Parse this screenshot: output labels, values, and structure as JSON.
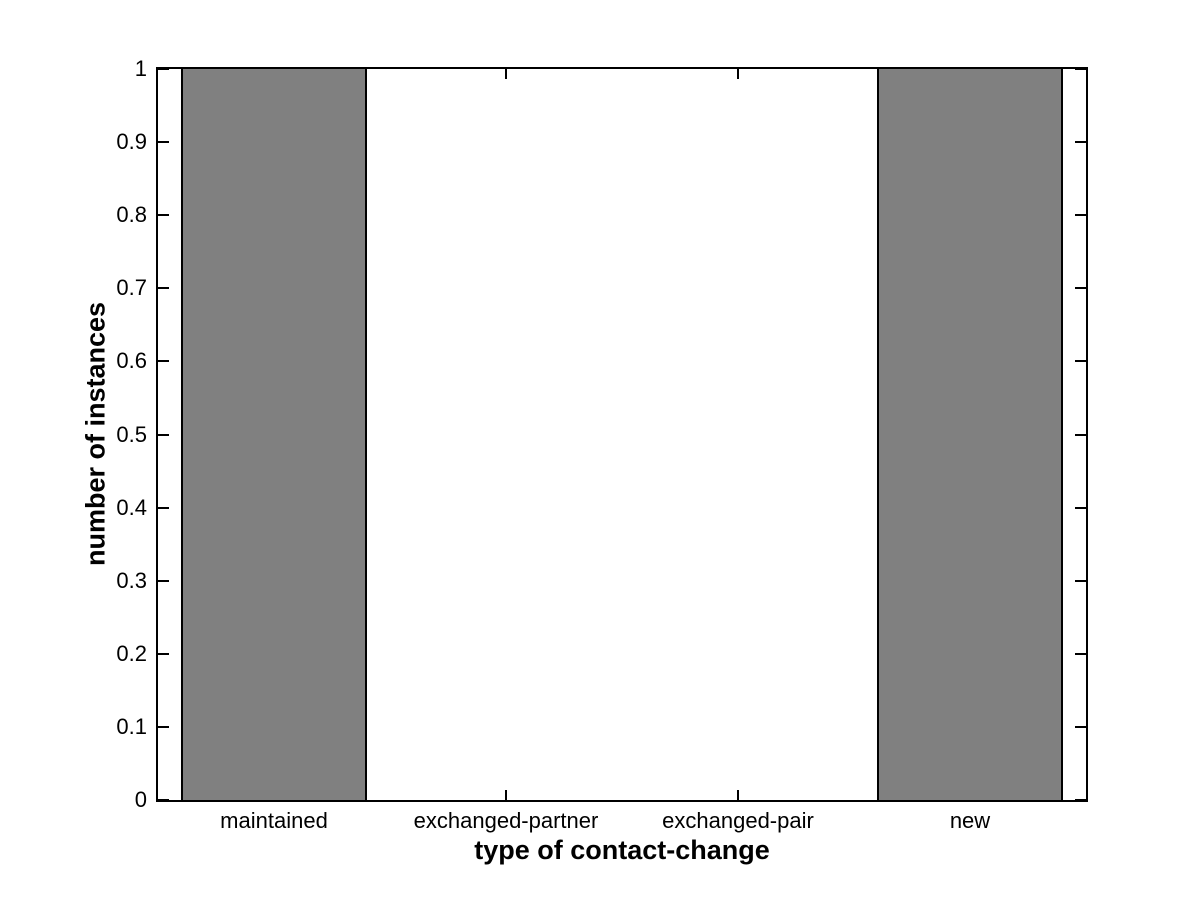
{
  "chart_data": {
    "type": "bar",
    "title": "",
    "xlabel": "type of contact-change",
    "ylabel": "number of instances",
    "categories": [
      "maintained",
      "exchanged-partner",
      "exchanged-pair",
      "new"
    ],
    "values": [
      1,
      0,
      0,
      1
    ],
    "ylim": [
      0,
      1
    ],
    "ytick_labels": [
      "0",
      "0.1",
      "0.2",
      "0.3",
      "0.4",
      "0.5",
      "0.6",
      "0.7",
      "0.8",
      "0.9",
      "1"
    ],
    "ytick_values": [
      0,
      0.1,
      0.2,
      0.3,
      0.4,
      0.5,
      0.6,
      0.7,
      0.8,
      0.9,
      1
    ],
    "bar_width_fraction": 0.8,
    "grid": false,
    "legend_position": "none",
    "bar_fill_color": "#808080",
    "bar_edge_color": "#000000",
    "axis_color": "#000000",
    "background_color": "#ffffff",
    "tick_direction": "in",
    "box": "on"
  }
}
